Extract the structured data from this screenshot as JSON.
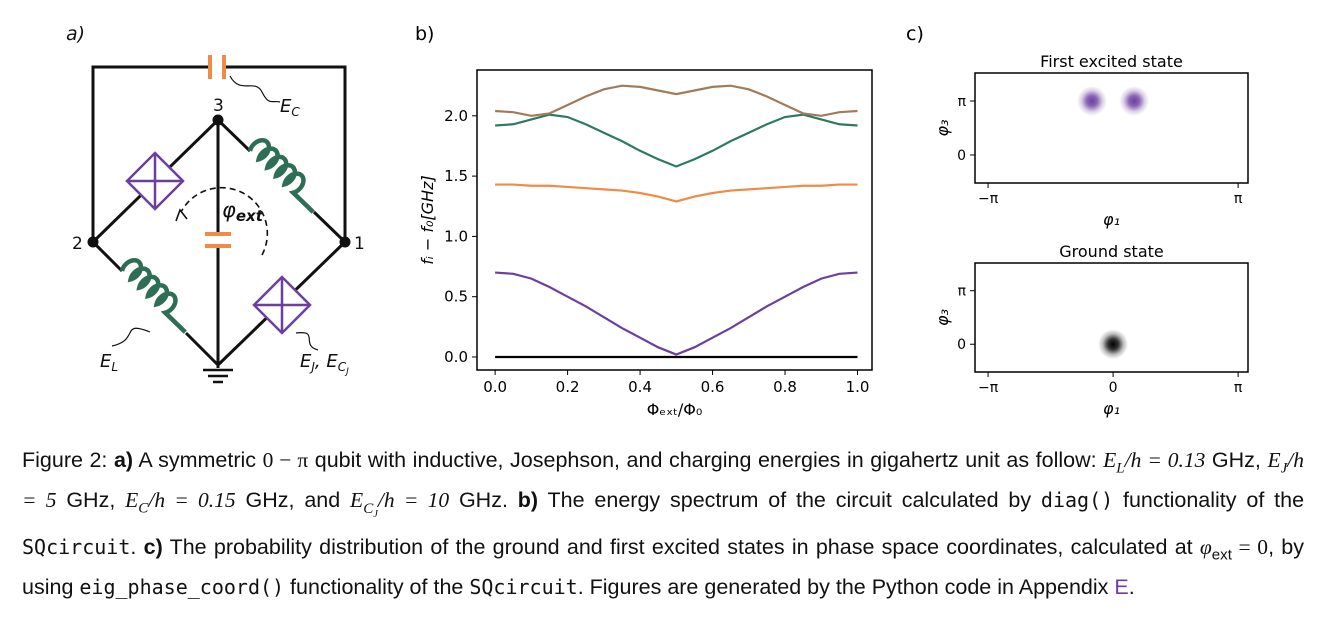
{
  "diagram": {
    "label": "a)",
    "nodes": [
      "3",
      "2",
      "1"
    ],
    "labels": {
      "ec": [
        "E",
        "C"
      ],
      "el": [
        "E",
        "L"
      ],
      "ej": [
        "E",
        "J",
        ", ",
        "E",
        "C",
        "J"
      ],
      "phi": [
        "φ",
        "ext"
      ]
    }
  },
  "chart_data": [
    {
      "type": "line",
      "label": "b)",
      "ylabel": "fᵢ − f₀[GHz]",
      "xlabel": "Φₑₓₜ/Φ₀",
      "x": [
        0,
        0.05,
        0.1,
        0.15,
        0.2,
        0.25,
        0.3,
        0.35,
        0.4,
        0.45,
        0.5,
        0.55,
        0.6,
        0.65,
        0.7,
        0.75,
        0.8,
        0.85,
        0.9,
        0.95,
        1
      ],
      "series": [
        {
          "color": "#000000",
          "values": [
            0,
            0,
            0,
            0,
            0,
            0,
            0,
            0,
            0,
            0,
            0,
            0,
            0,
            0,
            0,
            0,
            0,
            0,
            0,
            0,
            0
          ]
        },
        {
          "color": "#6b3fa0",
          "values": [
            0.7,
            0.69,
            0.65,
            0.58,
            0.5,
            0.42,
            0.33,
            0.24,
            0.16,
            0.08,
            0.02,
            0.08,
            0.16,
            0.24,
            0.33,
            0.42,
            0.5,
            0.58,
            0.65,
            0.69,
            0.7
          ]
        },
        {
          "color": "#ef8a47",
          "values": [
            1.43,
            1.43,
            1.42,
            1.42,
            1.41,
            1.4,
            1.39,
            1.38,
            1.36,
            1.33,
            1.29,
            1.33,
            1.36,
            1.38,
            1.39,
            1.4,
            1.41,
            1.42,
            1.42,
            1.43,
            1.43
          ]
        },
        {
          "color": "#2e7a60",
          "values": [
            1.92,
            1.93,
            1.97,
            2.01,
            1.99,
            1.93,
            1.86,
            1.79,
            1.71,
            1.64,
            1.58,
            1.64,
            1.71,
            1.79,
            1.86,
            1.93,
            1.99,
            2.01,
            1.97,
            1.93,
            1.92
          ]
        },
        {
          "color": "#a27b5a",
          "values": [
            2.04,
            2.03,
            2.0,
            2.02,
            2.09,
            2.16,
            2.22,
            2.25,
            2.24,
            2.21,
            2.18,
            2.21,
            2.24,
            2.25,
            2.22,
            2.16,
            2.09,
            2.02,
            2.0,
            2.03,
            2.04
          ]
        }
      ],
      "xlim": [
        -0.05,
        1.04
      ],
      "ylim": [
        -0.108,
        2.38
      ],
      "xticks": [
        {
          "value": 0,
          "label": "0.0"
        },
        {
          "value": 0.2,
          "label": "0.2"
        },
        {
          "value": 0.4,
          "label": "0.4"
        },
        {
          "value": 0.6,
          "label": "0.6"
        },
        {
          "value": 0.8,
          "label": "0.8"
        },
        {
          "value": 1,
          "label": "1.0"
        }
      ],
      "yticks": [
        {
          "value": 0,
          "label": "0.0"
        },
        {
          "value": 0.5,
          "label": "0.5"
        },
        {
          "value": 1,
          "label": "1.0"
        },
        {
          "value": 1.5,
          "label": "1.5"
        },
        {
          "value": 2,
          "label": "2.0"
        }
      ]
    },
    {
      "type": "density",
      "label": "c)",
      "title": "First excited state",
      "xlabel": "φ₁",
      "ylabel": "φ₃",
      "color": "#6b3fa0",
      "points": [
        {
          "x": -0.53,
          "y": 3.1416
        },
        {
          "x": 0.53,
          "y": 3.1416
        }
      ],
      "xlim": [
        -3.47,
        3.39
      ],
      "ylim": [
        -1.63,
        4.77
      ],
      "xticks": [
        {
          "value": -3.1416,
          "label": "−π"
        },
        {
          "value": 3.1416,
          "label": "π"
        }
      ],
      "yticks": [
        0,
        {
          "value": 3.1416,
          "label": "π"
        }
      ]
    },
    {
      "type": "density",
      "title": "Ground state",
      "xlabel": "φ₁",
      "ylabel": "φ₃",
      "color": "#000000",
      "points": [
        {
          "x": 0,
          "y": 0
        }
      ],
      "xlim": [
        -3.47,
        3.39
      ],
      "ylim": [
        -1.63,
        4.77
      ],
      "xticks": [
        {
          "value": -3.1416,
          "label": "−π"
        },
        0,
        {
          "value": 3.1416,
          "label": "π"
        }
      ],
      "yticks": [
        0,
        {
          "value": 3.1416,
          "label": "π"
        }
      ]
    }
  ],
  "caption": {
    "parts": [
      "Figure 2: ",
      "a)",
      " A symmetric ",
      "0 − π",
      " qubit with inductive, Josephson, and charging energies in gigahertz unit as follow: ",
      "E",
      "L",
      "/h = 0.13",
      " GHz, ",
      "E",
      "J",
      "/h = 5",
      " GHz, ",
      "E",
      "C",
      "/h = 0.15",
      " GHz, and ",
      "E",
      "C",
      "J",
      "/h = 10",
      " GHz. ",
      "b)",
      " The energy spectrum of the circuit calculated by ",
      "diag()",
      " functionality of the ",
      "SQcircuit",
      ". ",
      "c)",
      " The probability distribution of the ground and first excited states in phase space coordinates, calculated at ",
      "φ",
      "ext",
      " = 0",
      ", by using ",
      "eig_phase_coord()",
      " functionality of the ",
      "SQcircuit",
      ". Figures are generated by the Python code in Appendix ",
      "E",
      "."
    ]
  }
}
